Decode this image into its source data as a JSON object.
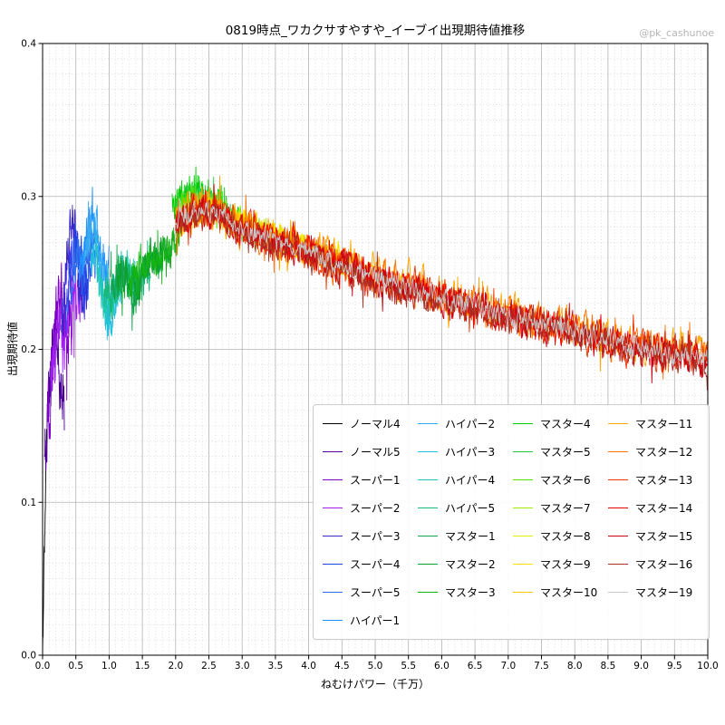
{
  "chart_data": {
    "type": "line",
    "title": "0819時点_ワカクサすやすや_イーブイ出現期待値推移",
    "watermark": "@pk_cashunoe",
    "xlabel": "ねむけパワー（千万）",
    "ylabel": "出現期待値",
    "xlim": [
      0,
      10
    ],
    "ylim": [
      0,
      0.4
    ],
    "x_ticks": [
      "0.0",
      "0.5",
      "1.0",
      "1.5",
      "2.0",
      "2.5",
      "3.0",
      "3.5",
      "4.0",
      "4.5",
      "5.0",
      "5.5",
      "6.0",
      "6.5",
      "7.0",
      "7.5",
      "8.0",
      "8.5",
      "9.0",
      "9.5",
      "10.0"
    ],
    "y_ticks": [
      "0.0",
      "0.1",
      "0.2",
      "0.3",
      "0.4"
    ],
    "x_minor_per_major": 5,
    "y_minor_per_major": 10,
    "grid": {
      "major_color": "#b3b3b3",
      "minor_color": "#cfcfcf"
    },
    "legend": {
      "position": "inside lower right",
      "columns": [
        8,
        7,
        7,
        7
      ]
    },
    "shared_anchors": {
      "band": [
        [
          2.0,
          0.284
        ],
        [
          2.3,
          0.291
        ],
        [
          2.6,
          0.29
        ],
        [
          3.0,
          0.279
        ],
        [
          3.5,
          0.271
        ],
        [
          4.0,
          0.263
        ],
        [
          4.5,
          0.255
        ],
        [
          5.0,
          0.247
        ],
        [
          5.5,
          0.24
        ],
        [
          6.0,
          0.234
        ],
        [
          6.5,
          0.228
        ],
        [
          7.0,
          0.222
        ],
        [
          7.5,
          0.217
        ],
        [
          8.0,
          0.212
        ],
        [
          8.5,
          0.206
        ],
        [
          9.0,
          0.201
        ],
        [
          9.5,
          0.197
        ],
        [
          10.0,
          0.194
        ]
      ]
    },
    "series": [
      {
        "name": "ノーマル4",
        "color": "#000000",
        "noise": 0.012,
        "anchors": [
          [
            0.0,
            0.005
          ],
          [
            0.03,
            0.08
          ],
          [
            0.05,
            0.13
          ],
          [
            0.07,
            0.15
          ]
        ]
      },
      {
        "name": "ノーマル5",
        "color": "#4b0096",
        "noise": 0.02,
        "anchors": [
          [
            0.03,
            0.12
          ],
          [
            0.08,
            0.16
          ],
          [
            0.13,
            0.19
          ],
          [
            0.2,
            0.21
          ],
          [
            0.28,
            0.18
          ],
          [
            0.33,
            0.16
          ]
        ]
      },
      {
        "name": "スーパー1",
        "color": "#8000c8",
        "noise": 0.02,
        "anchors": [
          [
            0.07,
            0.15
          ],
          [
            0.13,
            0.18
          ],
          [
            0.2,
            0.22
          ],
          [
            0.3,
            0.23
          ],
          [
            0.38,
            0.2
          ],
          [
            0.45,
            0.22
          ]
        ]
      },
      {
        "name": "スーパー2",
        "color": "#a020f0",
        "noise": 0.018,
        "anchors": [
          [
            0.12,
            0.17
          ],
          [
            0.22,
            0.22
          ],
          [
            0.33,
            0.2
          ],
          [
            0.42,
            0.25
          ],
          [
            0.5,
            0.23
          ],
          [
            0.58,
            0.24
          ]
        ]
      },
      {
        "name": "スーパー3",
        "color": "#3b28c8",
        "noise": 0.016,
        "anchors": [
          [
            0.28,
            0.21
          ],
          [
            0.36,
            0.25
          ],
          [
            0.45,
            0.28
          ],
          [
            0.52,
            0.26
          ],
          [
            0.6,
            0.23
          ],
          [
            0.68,
            0.25
          ]
        ]
      },
      {
        "name": "スーパー4",
        "color": "#2244e6",
        "noise": 0.014,
        "anchors": [
          [
            0.34,
            0.22
          ],
          [
            0.44,
            0.26
          ],
          [
            0.55,
            0.27
          ],
          [
            0.63,
            0.24
          ],
          [
            0.72,
            0.26
          ],
          [
            0.8,
            0.26
          ]
        ]
      },
      {
        "name": "スーパー5",
        "color": "#2d6ceb",
        "noise": 0.013,
        "anchors": [
          [
            0.42,
            0.24
          ],
          [
            0.52,
            0.26
          ],
          [
            0.62,
            0.25
          ],
          [
            0.72,
            0.27
          ],
          [
            0.82,
            0.26
          ]
        ]
      },
      {
        "name": "ハイパー1",
        "color": "#1e90ff",
        "noise": 0.013,
        "anchors": [
          [
            0.55,
            0.25
          ],
          [
            0.65,
            0.27
          ],
          [
            0.75,
            0.295
          ],
          [
            0.82,
            0.27
          ],
          [
            0.9,
            0.26
          ],
          [
            1.0,
            0.25
          ]
        ]
      },
      {
        "name": "ハイパー2",
        "color": "#35aaf0",
        "noise": 0.012,
        "anchors": [
          [
            0.62,
            0.26
          ],
          [
            0.72,
            0.275
          ],
          [
            0.8,
            0.285
          ],
          [
            0.9,
            0.25
          ],
          [
            1.0,
            0.23
          ],
          [
            1.08,
            0.24
          ]
        ]
      },
      {
        "name": "ハイパー3",
        "color": "#28c0e0",
        "noise": 0.012,
        "anchors": [
          [
            0.72,
            0.26
          ],
          [
            0.82,
            0.265
          ],
          [
            0.92,
            0.23
          ],
          [
            1.0,
            0.215
          ],
          [
            1.1,
            0.235
          ],
          [
            1.2,
            0.245
          ]
        ]
      },
      {
        "name": "ハイパー4",
        "color": "#20c8b4",
        "noise": 0.011,
        "anchors": [
          [
            0.82,
            0.25
          ],
          [
            0.95,
            0.225
          ],
          [
            1.08,
            0.24
          ],
          [
            1.2,
            0.25
          ],
          [
            1.32,
            0.25
          ],
          [
            1.45,
            0.245
          ]
        ]
      },
      {
        "name": "ハイパー5",
        "color": "#17b978",
        "noise": 0.011,
        "anchors": [
          [
            0.92,
            0.235
          ],
          [
            1.05,
            0.235
          ],
          [
            1.2,
            0.25
          ],
          [
            1.35,
            0.24
          ],
          [
            1.5,
            0.25
          ],
          [
            1.62,
            0.25
          ]
        ]
      },
      {
        "name": "マスター1",
        "color": "#12a34f",
        "noise": 0.01,
        "anchors": [
          [
            1.02,
            0.24
          ],
          [
            1.2,
            0.255
          ],
          [
            1.35,
            0.23
          ],
          [
            1.5,
            0.25
          ],
          [
            1.65,
            0.26
          ],
          [
            1.8,
            0.255
          ]
        ]
      },
      {
        "name": "マスター2",
        "color": "#0ea02a",
        "noise": 0.01,
        "anchors": [
          [
            1.12,
            0.245
          ],
          [
            1.3,
            0.245
          ],
          [
            1.45,
            0.24
          ],
          [
            1.6,
            0.26
          ],
          [
            1.8,
            0.26
          ],
          [
            1.95,
            0.265
          ]
        ]
      },
      {
        "name": "マスター3",
        "color": "#12b312",
        "noise": 0.01,
        "anchors": [
          [
            1.3,
            0.245
          ],
          [
            1.5,
            0.255
          ],
          [
            1.7,
            0.26
          ],
          [
            1.85,
            0.26
          ],
          [
            2.0,
            0.275
          ],
          [
            2.15,
            0.285
          ]
        ]
      },
      {
        "name": "マスター4",
        "color": "#00cc00",
        "noise": 0.008,
        "anchors": [
          [
            1.95,
            0.295
          ],
          [
            2.1,
            0.3
          ],
          [
            2.3,
            0.305
          ],
          [
            2.5,
            0.3
          ],
          [
            2.65,
            0.295
          ],
          [
            2.8,
            0.29
          ]
        ]
      },
      {
        "name": "マスター5",
        "color": "#27c840",
        "noise": 0.008,
        "anchors": [
          [
            2.0,
            0.29
          ],
          [
            2.2,
            0.3
          ],
          [
            2.4,
            0.3
          ],
          [
            2.6,
            0.295
          ],
          [
            2.8,
            0.29
          ],
          [
            3.0,
            0.282
          ]
        ]
      },
      {
        "name": "マスター6",
        "color": "#55e000",
        "noise": 0.008,
        "anchors": [
          [
            2.0,
            0.29
          ],
          [
            2.3,
            0.3
          ],
          [
            2.6,
            0.293
          ],
          [
            2.9,
            0.284
          ],
          [
            3.2,
            0.278
          ]
        ]
      },
      {
        "name": "マスター7",
        "color": "#a0ee00",
        "noise": 0.007,
        "anchors": [
          [
            2.0,
            0.286
          ],
          [
            2.4,
            0.294
          ],
          [
            2.8,
            0.288
          ],
          [
            3.2,
            0.279
          ],
          [
            3.5,
            0.274
          ]
        ]
      },
      {
        "name": "マスター8",
        "color": "#e0ee00",
        "noise": 0.007,
        "anchors": [
          [
            2.0,
            0.285
          ],
          [
            2.5,
            0.292
          ],
          [
            3.0,
            0.283
          ],
          [
            3.5,
            0.274
          ],
          [
            4.0,
            0.266
          ]
        ]
      },
      {
        "name": "マスター9",
        "color": "#ffe000",
        "noise": 0.007,
        "anchors": [
          [
            2.0,
            0.284
          ],
          [
            2.5,
            0.291
          ],
          [
            3.0,
            0.282
          ],
          [
            3.5,
            0.272
          ],
          [
            4.0,
            0.265
          ],
          [
            4.5,
            0.258
          ]
        ]
      },
      {
        "name": "マスター10",
        "color": "#ffc800",
        "noise": 0.007,
        "anchors": [
          [
            2.0,
            0.283
          ],
          [
            2.5,
            0.29
          ],
          [
            3.0,
            0.281
          ],
          [
            3.5,
            0.271
          ],
          [
            4.0,
            0.264
          ],
          [
            4.5,
            0.256
          ],
          [
            5.0,
            0.249
          ]
        ]
      },
      {
        "name": "マスター11",
        "color": "#ffa500",
        "noise": 0.01,
        "y_offset": 0.002,
        "anchors": "band"
      },
      {
        "name": "マスター12",
        "color": "#ff7000",
        "noise": 0.01,
        "y_offset": 0.001,
        "anchors": "band"
      },
      {
        "name": "マスター13",
        "color": "#ee3300",
        "noise": 0.0095,
        "anchors": "band"
      },
      {
        "name": "マスター14",
        "color": "#e60000",
        "noise": 0.009,
        "anchors": "band"
      },
      {
        "name": "マスター15",
        "color": "#c80014",
        "noise": 0.009,
        "y_offset": -0.001,
        "anchors": "band"
      },
      {
        "name": "マスター16",
        "color": "#a93226",
        "noise": 0.0085,
        "y_offset": -0.002,
        "anchors": "band"
      },
      {
        "name": "マスター19",
        "color": "#c8c8c8",
        "noise": 0.0055,
        "anchors": "band"
      }
    ]
  }
}
